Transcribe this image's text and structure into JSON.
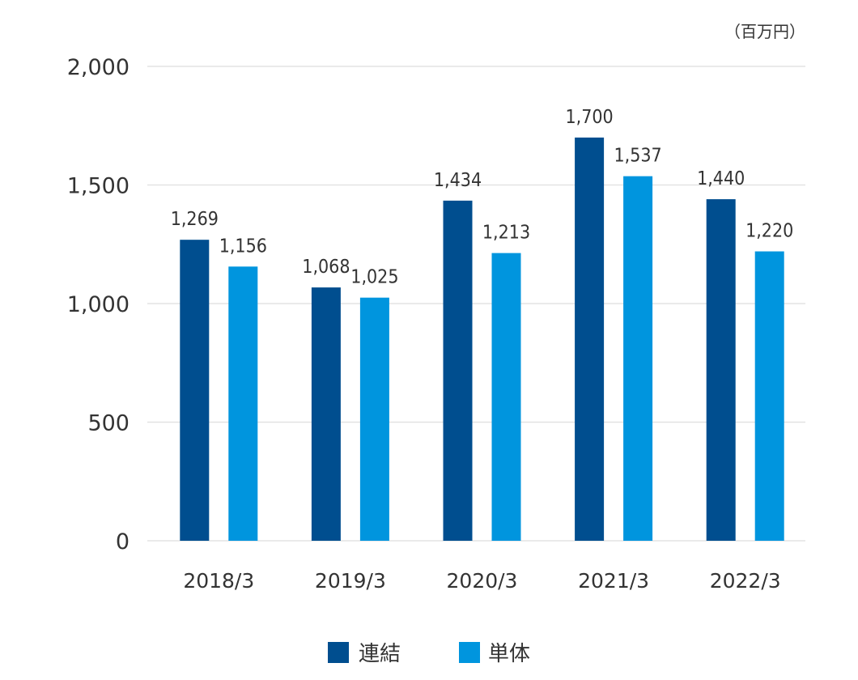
{
  "chart_data": {
    "type": "bar",
    "unit_label": "（百万円）",
    "categories": [
      "2018/3",
      "2019/3",
      "2020/3",
      "2021/3",
      "2022/3"
    ],
    "series": [
      {
        "name": "連結",
        "values": [
          1269,
          1068,
          1434,
          1700,
          1440
        ],
        "labels": [
          "1,269",
          "1,068",
          "1,434",
          "1,700",
          "1,440"
        ],
        "color": "#004e8f"
      },
      {
        "name": "単体",
        "values": [
          1156,
          1025,
          1213,
          1537,
          1220
        ],
        "labels": [
          "1,156",
          "1,025",
          "1,213",
          "1,537",
          "1,220"
        ],
        "color": "#0095de"
      }
    ],
    "ylim": [
      0,
      2000
    ],
    "yticks": [
      0,
      500,
      1000,
      1500,
      2000
    ],
    "ytick_labels": [
      "0",
      "500",
      "1,000",
      "1,500",
      "2,000"
    ],
    "grid": true,
    "legend_position": "bottom-center"
  }
}
